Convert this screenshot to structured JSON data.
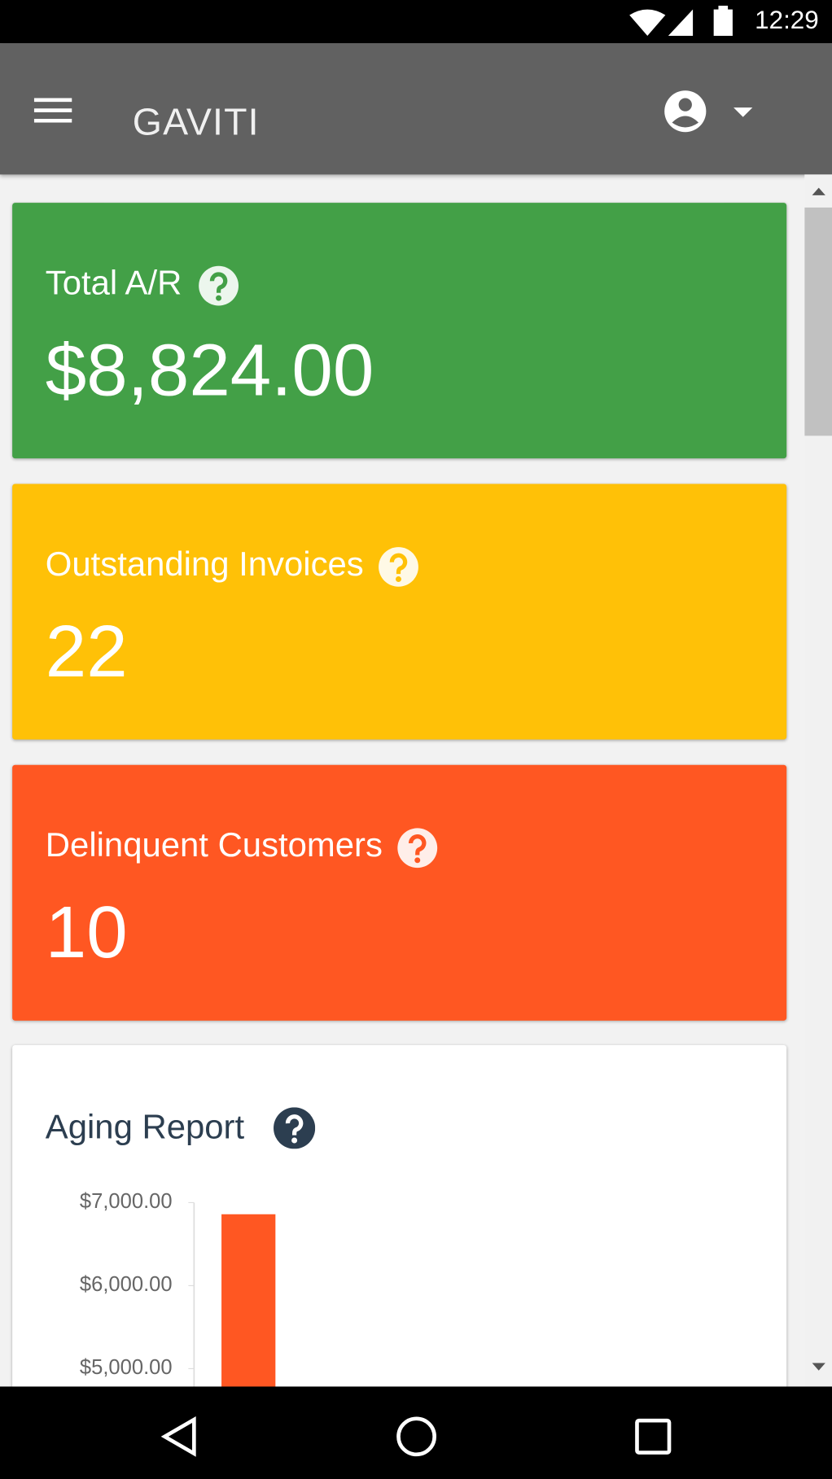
{
  "status_bar": {
    "time": "12:29"
  },
  "app_bar": {
    "logo": "GAVITI"
  },
  "cards": [
    {
      "label": "Total A/R",
      "value": "$8,824.00",
      "color": "#43a047"
    },
    {
      "label": "Outstanding Invoices",
      "value": "22",
      "color": "#ffc107"
    },
    {
      "label": "Delinquent Customers",
      "value": "10",
      "color": "#ff5722"
    }
  ],
  "aging_report": {
    "title": "Aging Report",
    "type": "bar",
    "yticks": [
      {
        "value": 7000,
        "label": "$7,000.00"
      },
      {
        "value": 6000,
        "label": "$6,000.00"
      },
      {
        "value": 5000,
        "label": "$5,000.00"
      }
    ],
    "values": [
      6860
    ],
    "color": "#ff5722"
  }
}
